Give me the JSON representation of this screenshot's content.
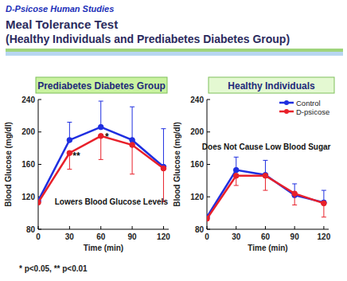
{
  "header": {
    "label": "D-Psicose Human Studies",
    "title": "Meal Tolerance Test",
    "subtitle": "(Healthy Individuals and Prediabetes Diabetes Group)"
  },
  "chart_data": [
    {
      "type": "line",
      "title": "Prediabetes Diabetes Group",
      "x_label": "Time (min)",
      "y_label": "Blood Glucose (mg/dl)",
      "x": [
        0,
        30,
        60,
        90,
        120
      ],
      "series": [
        {
          "color": "#1f2fe0",
          "marker": "circle",
          "values": [
            115,
            190,
            206,
            190,
            157
          ],
          "errors": [
            0,
            22,
            32,
            41,
            47
          ]
        },
        {
          "color": "#e8202a",
          "marker": "circle",
          "values": [
            113,
            174,
            195,
            184,
            155
          ],
          "errors": [
            0,
            20,
            29,
            36,
            41
          ]
        }
      ],
      "xlim": [
        0,
        125
      ],
      "xticks": [
        0,
        30,
        60,
        90,
        120
      ],
      "ylim": [
        80,
        240
      ],
      "yticks": [
        80,
        120,
        160,
        200,
        240
      ],
      "annotations": [
        {
          "text": "**",
          "x": 33,
          "y": 166
        },
        {
          "text": "*",
          "x": 64,
          "y": 190
        },
        {
          "text": "Lowers Blood Glucose Levels",
          "x": 70,
          "y": 110
        }
      ]
    },
    {
      "type": "line",
      "title": "Healthy Individuals",
      "x_label": "Time (min)",
      "y_label": "Blood Glucose (mg/dl)",
      "x": [
        0,
        30,
        60,
        90,
        120
      ],
      "series": [
        {
          "name": "Control",
          "color": "#1f2fe0",
          "marker": "circle",
          "values": [
            95,
            153,
            147,
            122,
            113
          ],
          "errors": [
            0,
            16,
            18,
            14,
            15
          ]
        },
        {
          "name": "D-psicose",
          "color": "#e8202a",
          "marker": "circle",
          "values": [
            93,
            146,
            146,
            124,
            112
          ],
          "errors": [
            0,
            12,
            18,
            14,
            17
          ]
        }
      ],
      "xlim": [
        0,
        125
      ],
      "xticks": [
        0,
        30,
        60,
        90,
        120
      ],
      "ylim": [
        80,
        240
      ],
      "yticks": [
        80,
        120,
        160,
        200,
        240
      ],
      "legend": "top-right",
      "annotations": [
        {
          "text": "Does Not Cause Low Blood Sugar",
          "x": 61,
          "y": 178
        }
      ]
    }
  ],
  "footnote": "* p<0.05, ** p<0.01"
}
